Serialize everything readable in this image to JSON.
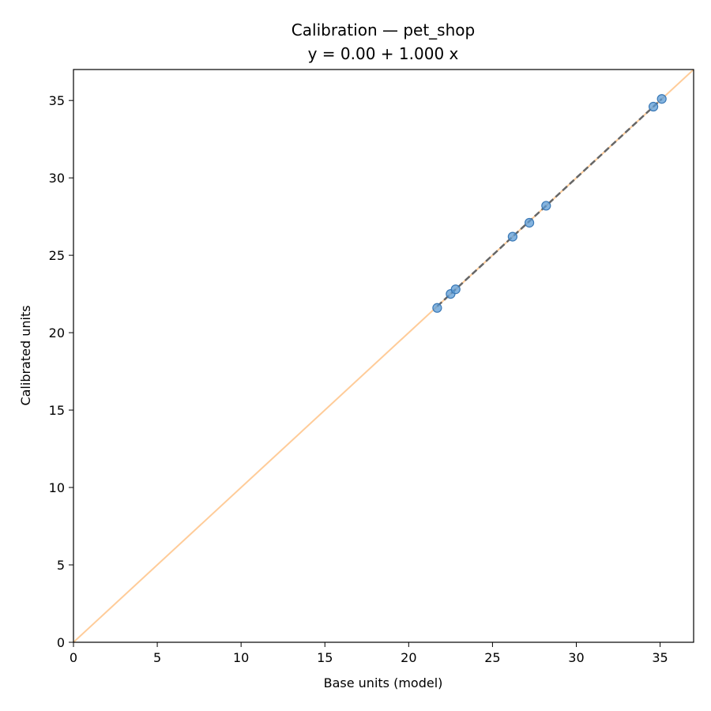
{
  "chart_data": {
    "type": "scatter",
    "title": "Calibration — pet_shop",
    "subtitle": "y = 0.00 + 1.000 x",
    "xlabel": "Base units (model)",
    "ylabel": "Calibrated units",
    "xlim": [
      0,
      37
    ],
    "ylim": [
      0,
      37
    ],
    "xticks": [
      0,
      5,
      10,
      15,
      20,
      25,
      30,
      35
    ],
    "yticks": [
      0,
      5,
      10,
      15,
      20,
      25,
      30,
      35
    ],
    "grid": false,
    "points": [
      {
        "x": 21.7,
        "y": 21.6
      },
      {
        "x": 22.5,
        "y": 22.5
      },
      {
        "x": 22.8,
        "y": 22.8
      },
      {
        "x": 26.2,
        "y": 26.2
      },
      {
        "x": 27.2,
        "y": 27.1
      },
      {
        "x": 28.2,
        "y": 28.2
      },
      {
        "x": 34.6,
        "y": 34.6
      },
      {
        "x": 35.1,
        "y": 35.1
      }
    ],
    "identity_line": {
      "from": [
        0,
        0
      ],
      "to": [
        37,
        37
      ],
      "color": "#ffcc99"
    },
    "fit_line": {
      "intercept": 0.0,
      "slope": 1.0,
      "from_x": 21.7,
      "to_x": 35.1,
      "color": "#666666",
      "style": "dashed"
    },
    "point_color": "#5b9bd5"
  }
}
